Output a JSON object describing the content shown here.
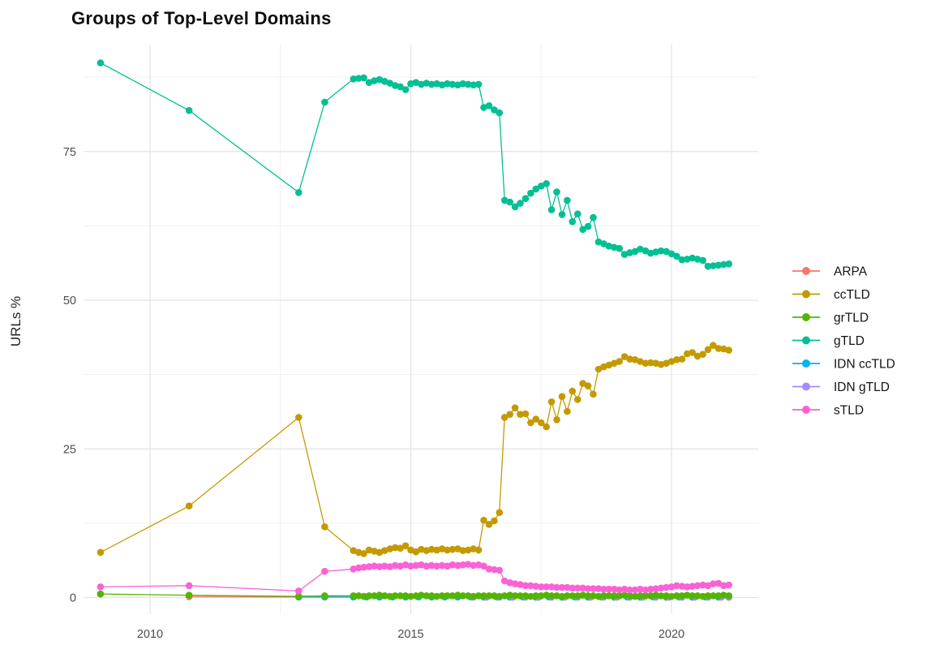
{
  "title": "Groups of Top-Level Domains",
  "y_axis_label": "URLs %",
  "axes": {
    "y_ticks": [
      0,
      25,
      50,
      75
    ],
    "y_minor": [
      12.5,
      37.5,
      62.5,
      87.5
    ],
    "x_ticks": [
      2010,
      2015,
      2020
    ],
    "x_minor": [
      2012.5,
      2017.5
    ]
  },
  "legend": [
    {
      "label": "ARPA",
      "color": "#F8766D"
    },
    {
      "label": "ccTLD",
      "color": "#C49A00"
    },
    {
      "label": "grTLD",
      "color": "#53B400"
    },
    {
      "label": "gTLD",
      "color": "#00C094"
    },
    {
      "label": "IDN ccTLD",
      "color": "#00B6EB"
    },
    {
      "label": "IDN gTLD",
      "color": "#A58AFF"
    },
    {
      "label": "sTLD",
      "color": "#FB61D7"
    }
  ],
  "chart_data": {
    "type": "line",
    "title": "Groups of Top-Level Domains",
    "xlabel": "",
    "ylabel": "URLs %",
    "xlim": [
      2008.75,
      2021.7
    ],
    "ylim": [
      -2.8,
      93
    ],
    "grid": true,
    "legend_position": "right",
    "x_common": [
      2009.05,
      2010.75,
      2012.85,
      2013.35,
      2013.9,
      2014.0,
      2014.1,
      2014.2,
      2014.3,
      2014.4,
      2014.5,
      2014.6,
      2014.7,
      2014.8,
      2014.9,
      2015.0,
      2015.1,
      2015.2,
      2015.3,
      2015.4,
      2015.5,
      2015.6,
      2015.7,
      2015.8,
      2015.9,
      2016.0,
      2016.1,
      2016.2,
      2016.3,
      2016.4,
      2016.5,
      2016.6,
      2016.7,
      2016.8,
      2016.9,
      2017.0,
      2017.1,
      2017.2,
      2017.3,
      2017.4,
      2017.5,
      2017.6,
      2017.7,
      2017.8,
      2017.9,
      2018.0,
      2018.1,
      2018.2,
      2018.3,
      2018.4,
      2018.5,
      2018.6,
      2018.7,
      2018.8,
      2018.9,
      2019.0,
      2019.1,
      2019.2,
      2019.3,
      2019.4,
      2019.5,
      2019.6,
      2019.7,
      2019.8,
      2019.9,
      2020.0,
      2020.1,
      2020.2,
      2020.3,
      2020.4,
      2020.5,
      2020.6,
      2020.7,
      2020.8,
      2020.9,
      2021.0,
      2021.1
    ],
    "series": [
      {
        "name": "ARPA",
        "color": "#F8766D",
        "x": [
          2010.75,
          2012.85,
          2013.35,
          2013.9,
          2014.4,
          2014.9,
          2015.4,
          2015.9,
          2016.4,
          2016.9,
          2017.4,
          2017.9,
          2018.4,
          2018.9,
          2019.4,
          2019.9,
          2020.4,
          2020.9,
          2021.1
        ],
        "y": [
          0.15,
          0.1,
          0.1,
          0.1,
          0.1,
          0.1,
          0.1,
          0.1,
          0.08,
          0.05,
          0.05,
          0.05,
          0.05,
          0.05,
          0.05,
          0.05,
          0.05,
          0.05,
          0.05
        ]
      },
      {
        "name": "ccTLD",
        "color": "#C49A00",
        "x": "common",
        "y": [
          7.6,
          15.4,
          30.3,
          11.9,
          7.9,
          7.6,
          7.4,
          8.0,
          7.8,
          7.6,
          7.9,
          8.2,
          8.4,
          8.3,
          8.7,
          8.0,
          7.7,
          8.1,
          7.9,
          8.1,
          8.0,
          8.2,
          8.0,
          8.1,
          8.2,
          7.9,
          8.0,
          8.2,
          8.0,
          13.0,
          12.3,
          12.9,
          14.3,
          30.3,
          30.8,
          31.9,
          30.8,
          30.9,
          29.4,
          30.0,
          29.4,
          28.7,
          32.9,
          29.9,
          33.8,
          31.3,
          34.7,
          33.3,
          36.0,
          35.6,
          34.2,
          38.4,
          38.8,
          39.1,
          39.4,
          39.7,
          40.5,
          40.1,
          40.0,
          39.7,
          39.4,
          39.5,
          39.4,
          39.2,
          39.4,
          39.7,
          40.0,
          40.1,
          41.0,
          41.2,
          40.6,
          40.9,
          41.7,
          42.4,
          41.9,
          41.8,
          41.6
        ]
      },
      {
        "name": "grTLD",
        "color": "#53B400",
        "x": "common",
        "y": [
          0.6,
          0.4,
          0.2,
          0.3,
          0.3,
          0.3,
          0.2,
          0.3,
          0.3,
          0.4,
          0.3,
          0.2,
          0.3,
          0.3,
          0.3,
          0.2,
          0.3,
          0.4,
          0.3,
          0.3,
          0.2,
          0.3,
          0.3,
          0.3,
          0.4,
          0.3,
          0.3,
          0.2,
          0.3,
          0.3,
          0.3,
          0.3,
          0.2,
          0.3,
          0.4,
          0.3,
          0.3,
          0.3,
          0.2,
          0.3,
          0.3,
          0.4,
          0.3,
          0.3,
          0.2,
          0.3,
          0.3,
          0.3,
          0.4,
          0.3,
          0.3,
          0.2,
          0.3,
          0.3,
          0.3,
          0.3,
          0.4,
          0.3,
          0.2,
          0.3,
          0.3,
          0.3,
          0.4,
          0.3,
          0.3,
          0.2,
          0.3,
          0.3,
          0.4,
          0.3,
          0.3,
          0.2,
          0.3,
          0.3,
          0.3,
          0.4,
          0.3
        ]
      },
      {
        "name": "gTLD",
        "color": "#00C094",
        "x": "common",
        "y": [
          89.9,
          81.9,
          68.1,
          83.3,
          87.2,
          87.3,
          87.4,
          86.6,
          86.9,
          87.1,
          86.8,
          86.5,
          86.1,
          85.9,
          85.4,
          86.4,
          86.6,
          86.3,
          86.5,
          86.3,
          86.4,
          86.2,
          86.4,
          86.3,
          86.2,
          86.4,
          86.3,
          86.2,
          86.3,
          82.4,
          82.7,
          82.0,
          81.5,
          66.8,
          66.5,
          65.7,
          66.3,
          67.1,
          68.0,
          68.7,
          69.2,
          69.6,
          65.2,
          68.2,
          64.4,
          66.8,
          63.2,
          64.5,
          61.9,
          62.4,
          63.9,
          59.8,
          59.5,
          59.1,
          58.9,
          58.7,
          57.7,
          58.0,
          58.2,
          58.6,
          58.3,
          57.9,
          58.1,
          58.3,
          58.2,
          57.8,
          57.4,
          56.8,
          56.9,
          57.1,
          56.9,
          56.7,
          55.7,
          55.8,
          55.9,
          56.0,
          56.1
        ]
      },
      {
        "name": "IDN ccTLD",
        "color": "#00B6EB",
        "x": [
          2012.85,
          2013.35,
          2013.9,
          2014.15,
          2014.4,
          2014.65,
          2014.9,
          2015.15,
          2015.4,
          2015.65,
          2015.9,
          2016.15,
          2016.4,
          2016.65,
          2016.9,
          2017.15,
          2017.4,
          2017.65,
          2017.9,
          2018.15,
          2018.4,
          2018.65,
          2018.9,
          2019.15,
          2019.4,
          2019.65,
          2019.9,
          2020.15,
          2020.4,
          2020.65,
          2020.9,
          2021.1
        ],
        "y": [
          0.1,
          0.1,
          0.1,
          0.1,
          0.1,
          0.1,
          0.1,
          0.1,
          0.1,
          0.1,
          0.1,
          0.1,
          0.1,
          0.1,
          0.1,
          0.1,
          0.1,
          0.1,
          0.1,
          0.1,
          0.1,
          0.1,
          0.1,
          0.1,
          0.1,
          0.1,
          0.1,
          0.1,
          0.1,
          0.1,
          0.1,
          0.1
        ]
      },
      {
        "name": "IDN gTLD",
        "color": "#A58AFF",
        "x": [
          2016.2,
          2016.45,
          2016.7,
          2016.95,
          2017.2,
          2017.45,
          2017.7,
          2017.95,
          2018.2,
          2018.45,
          2018.7,
          2018.95,
          2019.2,
          2019.45,
          2019.7,
          2019.95,
          2020.2,
          2020.45,
          2020.7,
          2020.95,
          2021.1
        ],
        "y": [
          0.05,
          0.05,
          0.05,
          0.05,
          0.05,
          0.05,
          0.05,
          0.05,
          0.05,
          0.05,
          0.05,
          0.05,
          0.05,
          0.05,
          0.05,
          0.05,
          0.05,
          0.05,
          0.05,
          0.05,
          0.05
        ]
      },
      {
        "name": "sTLD",
        "color": "#FB61D7",
        "x": "common",
        "y": [
          1.8,
          2.0,
          1.1,
          4.4,
          4.8,
          5.0,
          5.1,
          5.2,
          5.3,
          5.2,
          5.3,
          5.2,
          5.4,
          5.3,
          5.5,
          5.3,
          5.4,
          5.5,
          5.3,
          5.4,
          5.3,
          5.4,
          5.3,
          5.5,
          5.4,
          5.5,
          5.6,
          5.4,
          5.5,
          5.3,
          4.8,
          4.7,
          4.6,
          2.8,
          2.5,
          2.3,
          2.2,
          2.0,
          2.0,
          1.9,
          1.8,
          1.8,
          1.8,
          1.7,
          1.7,
          1.7,
          1.6,
          1.6,
          1.6,
          1.5,
          1.5,
          1.5,
          1.4,
          1.4,
          1.4,
          1.3,
          1.4,
          1.3,
          1.3,
          1.4,
          1.3,
          1.4,
          1.5,
          1.6,
          1.7,
          1.8,
          2.0,
          1.9,
          1.8,
          1.9,
          2.0,
          2.1,
          2.0,
          2.3,
          2.4,
          2.0,
          2.1
        ]
      }
    ],
    "draw_order": [
      "ARPA",
      "IDN ccTLD",
      "IDN gTLD",
      "grTLD",
      "sTLD",
      "ccTLD",
      "gTLD"
    ]
  }
}
